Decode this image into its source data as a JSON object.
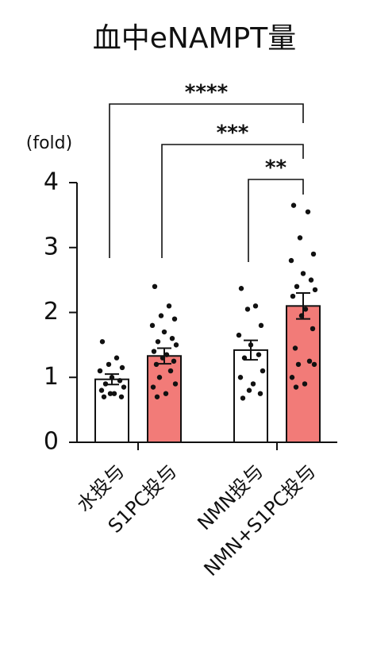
{
  "chart_data": {
    "type": "bar",
    "title": "血中eNAMPT量",
    "y_label": "(fold)",
    "categories": [
      "水投与",
      "S1PC投与",
      "NMN投与",
      "NMN+S1PC投与"
    ],
    "values": [
      0.97,
      1.33,
      1.42,
      2.1
    ],
    "errors": [
      0.08,
      0.12,
      0.15,
      0.2
    ],
    "colors": [
      "#ffffff",
      "#f27b78",
      "#ffffff",
      "#f27b78"
    ],
    "points": [
      [
        1.55,
        1.3,
        1.2,
        1.15,
        1.1,
        1.0,
        0.95,
        0.9,
        0.85,
        0.8,
        0.75,
        0.75,
        0.7,
        0.7
      ],
      [
        2.4,
        2.1,
        1.95,
        1.9,
        1.8,
        1.7,
        1.6,
        1.55,
        1.5,
        1.4,
        1.35,
        1.3,
        1.25,
        1.2,
        1.1,
        1.0,
        0.9,
        0.85,
        0.75,
        0.7
      ],
      [
        2.37,
        2.1,
        2.05,
        1.8,
        1.65,
        1.5,
        1.35,
        1.3,
        1.1,
        1.0,
        0.9,
        0.8,
        0.75,
        0.68
      ],
      [
        3.65,
        3.55,
        3.15,
        2.9,
        2.8,
        2.6,
        2.5,
        2.4,
        2.35,
        2.25,
        2.05,
        1.95,
        1.75,
        1.45,
        1.25,
        1.2,
        1.2,
        1.0,
        0.9,
        0.85
      ]
    ],
    "significance": [
      "****",
      "***",
      "**"
    ],
    "ylim": [
      0,
      4
    ],
    "yticks": [
      0,
      1,
      2,
      3,
      4
    ]
  }
}
